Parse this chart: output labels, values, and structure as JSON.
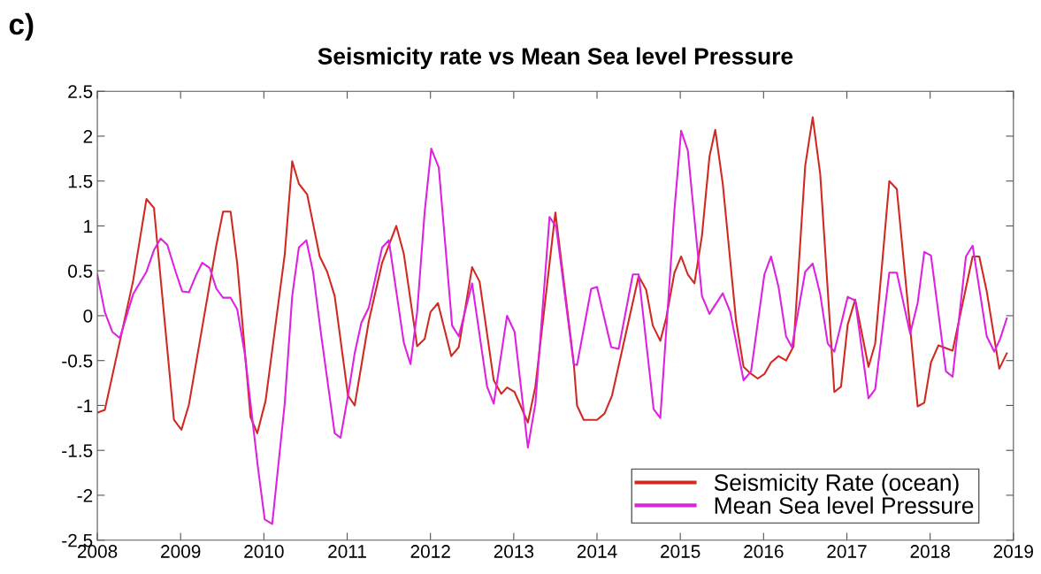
{
  "chart_data": {
    "type": "line",
    "title": "Seismicity rate vs Mean Sea level Pressure",
    "annotations": [
      "c)"
    ],
    "series": [
      {
        "name": "Seismicity Rate (ocean)",
        "color": "#d02a22",
        "x": [
          2008.0,
          2008.09,
          2008.43,
          2008.59,
          2008.68,
          2008.92,
          2009.01,
          2009.1,
          2009.43,
          2009.51,
          2009.6,
          2009.68,
          2009.84,
          2009.92,
          2010.02,
          2010.25,
          2010.34,
          2010.42,
          2010.52,
          2010.67,
          2010.76,
          2010.85,
          2011.01,
          2011.09,
          2011.26,
          2011.42,
          2011.59,
          2011.68,
          2011.84,
          2011.93,
          2012.0,
          2012.09,
          2012.25,
          2012.34,
          2012.5,
          2012.59,
          2012.76,
          2012.85,
          2012.92,
          2013.01,
          2013.17,
          2013.26,
          2013.5,
          2013.72,
          2013.76,
          2013.84,
          2014.0,
          2014.09,
          2014.18,
          2014.5,
          2014.59,
          2014.67,
          2014.76,
          2014.83,
          2014.93,
          2015.01,
          2015.09,
          2015.17,
          2015.26,
          2015.35,
          2015.42,
          2015.51,
          2015.67,
          2015.76,
          2015.84,
          2015.93,
          2016.01,
          2016.09,
          2016.18,
          2016.27,
          2016.36,
          2016.5,
          2016.59,
          2016.68,
          2016.85,
          2016.93,
          2017.01,
          2017.1,
          2017.26,
          2017.34,
          2017.51,
          2017.6,
          2017.85,
          2017.93,
          2018.01,
          2018.1,
          2018.27,
          2018.51,
          2018.59,
          2018.68,
          2018.83,
          2018.92
        ],
        "values": [
          -1.08,
          -1.05,
          0.39,
          1.3,
          1.2,
          -1.16,
          -1.27,
          -0.99,
          0.79,
          1.16,
          1.16,
          0.58,
          -1.13,
          -1.31,
          -0.95,
          0.68,
          1.72,
          1.47,
          1.35,
          0.66,
          0.49,
          0.22,
          -0.89,
          -1.0,
          -0.06,
          0.59,
          1.0,
          0.69,
          -0.34,
          -0.26,
          0.04,
          0.14,
          -0.45,
          -0.35,
          0.54,
          0.38,
          -0.72,
          -0.87,
          -0.8,
          -0.85,
          -1.19,
          -0.79,
          1.15,
          -0.52,
          -1.0,
          -1.16,
          -1.16,
          -1.09,
          -0.89,
          0.44,
          0.29,
          -0.11,
          -0.28,
          -0.03,
          0.48,
          0.66,
          0.46,
          0.36,
          0.89,
          1.77,
          2.07,
          1.47,
          -0.06,
          -0.57,
          -0.64,
          -0.7,
          -0.65,
          -0.52,
          -0.45,
          -0.5,
          -0.34,
          1.67,
          2.21,
          1.58,
          -0.85,
          -0.79,
          -0.1,
          0.18,
          -0.57,
          -0.31,
          1.5,
          1.41,
          -1.01,
          -0.97,
          -0.52,
          -0.33,
          -0.39,
          0.66,
          0.66,
          0.27,
          -0.59,
          -0.42
        ]
      },
      {
        "name": "Mean Sea level Pressure",
        "color": "#dd22e0",
        "x": [
          2008.0,
          2008.09,
          2008.18,
          2008.27,
          2008.43,
          2008.59,
          2008.68,
          2008.76,
          2008.84,
          2008.94,
          2009.02,
          2009.1,
          2009.18,
          2009.26,
          2009.35,
          2009.43,
          2009.51,
          2009.6,
          2009.68,
          2009.77,
          2009.93,
          2010.01,
          2010.1,
          2010.25,
          2010.34,
          2010.42,
          2010.51,
          2010.59,
          2010.69,
          2010.85,
          2010.92,
          2011.01,
          2011.09,
          2011.17,
          2011.26,
          2011.42,
          2011.5,
          2011.68,
          2011.76,
          2011.84,
          2011.93,
          2012.01,
          2012.1,
          2012.26,
          2012.34,
          2012.5,
          2012.68,
          2012.76,
          2012.92,
          2013.01,
          2013.17,
          2013.26,
          2013.43,
          2013.51,
          2013.72,
          2013.76,
          2013.93,
          2014.0,
          2014.17,
          2014.26,
          2014.43,
          2014.5,
          2014.68,
          2014.76,
          2014.93,
          2015.01,
          2015.09,
          2015.26,
          2015.35,
          2015.51,
          2015.6,
          2015.76,
          2015.85,
          2016.01,
          2016.09,
          2016.18,
          2016.27,
          2016.34,
          2016.5,
          2016.59,
          2016.68,
          2016.77,
          2016.85,
          2017.01,
          2017.1,
          2017.26,
          2017.34,
          2017.51,
          2017.6,
          2017.76,
          2017.85,
          2017.93,
          2018.01,
          2018.19,
          2018.27,
          2018.43,
          2018.51,
          2018.68,
          2018.77,
          2018.84,
          2018.92
        ],
        "values": [
          0.46,
          0.04,
          -0.18,
          -0.25,
          0.24,
          0.49,
          0.73,
          0.86,
          0.79,
          0.49,
          0.27,
          0.26,
          0.44,
          0.59,
          0.53,
          0.3,
          0.2,
          0.2,
          0.07,
          -0.42,
          -1.7,
          -2.27,
          -2.32,
          -0.98,
          0.22,
          0.76,
          0.84,
          0.49,
          -0.23,
          -1.31,
          -1.36,
          -0.89,
          -0.42,
          -0.08,
          0.09,
          0.76,
          0.84,
          -0.3,
          -0.54,
          0.04,
          1.15,
          1.86,
          1.65,
          -0.11,
          -0.23,
          0.36,
          -0.79,
          -0.98,
          0.0,
          -0.18,
          -1.47,
          -0.98,
          1.1,
          0.99,
          -0.54,
          -0.55,
          0.3,
          0.32,
          -0.35,
          -0.37,
          0.46,
          0.46,
          -1.04,
          -1.14,
          1.18,
          2.06,
          1.84,
          0.22,
          0.02,
          0.25,
          0.04,
          -0.72,
          -0.62,
          0.46,
          0.66,
          0.32,
          -0.23,
          -0.35,
          0.49,
          0.58,
          0.24,
          -0.31,
          -0.4,
          0.21,
          0.17,
          -0.92,
          -0.82,
          0.48,
          0.48,
          -0.2,
          0.14,
          0.71,
          0.67,
          -0.62,
          -0.68,
          0.66,
          0.78,
          -0.23,
          -0.4,
          -0.26,
          -0.03
        ]
      }
    ],
    "xlim": [
      2008,
      2019
    ],
    "xticks": [
      2008,
      2009,
      2010,
      2011,
      2012,
      2013,
      2014,
      2015,
      2016,
      2017,
      2018,
      2019
    ],
    "ylim": [
      -2.5,
      2.5
    ],
    "yticks": [
      {
        "value": -2.5,
        "label": "-2.5"
      },
      {
        "value": -2,
        "label": "-2"
      },
      {
        "value": -1.5,
        "label": "-1.5"
      },
      {
        "value": -1,
        "label": "-1"
      },
      {
        "value": -0.5,
        "label": "-0.5"
      },
      0,
      0.5,
      1,
      1.5,
      2,
      2.5
    ],
    "grid": false,
    "legend": "bottom right",
    "marker": "none",
    "line_style": "solid"
  }
}
